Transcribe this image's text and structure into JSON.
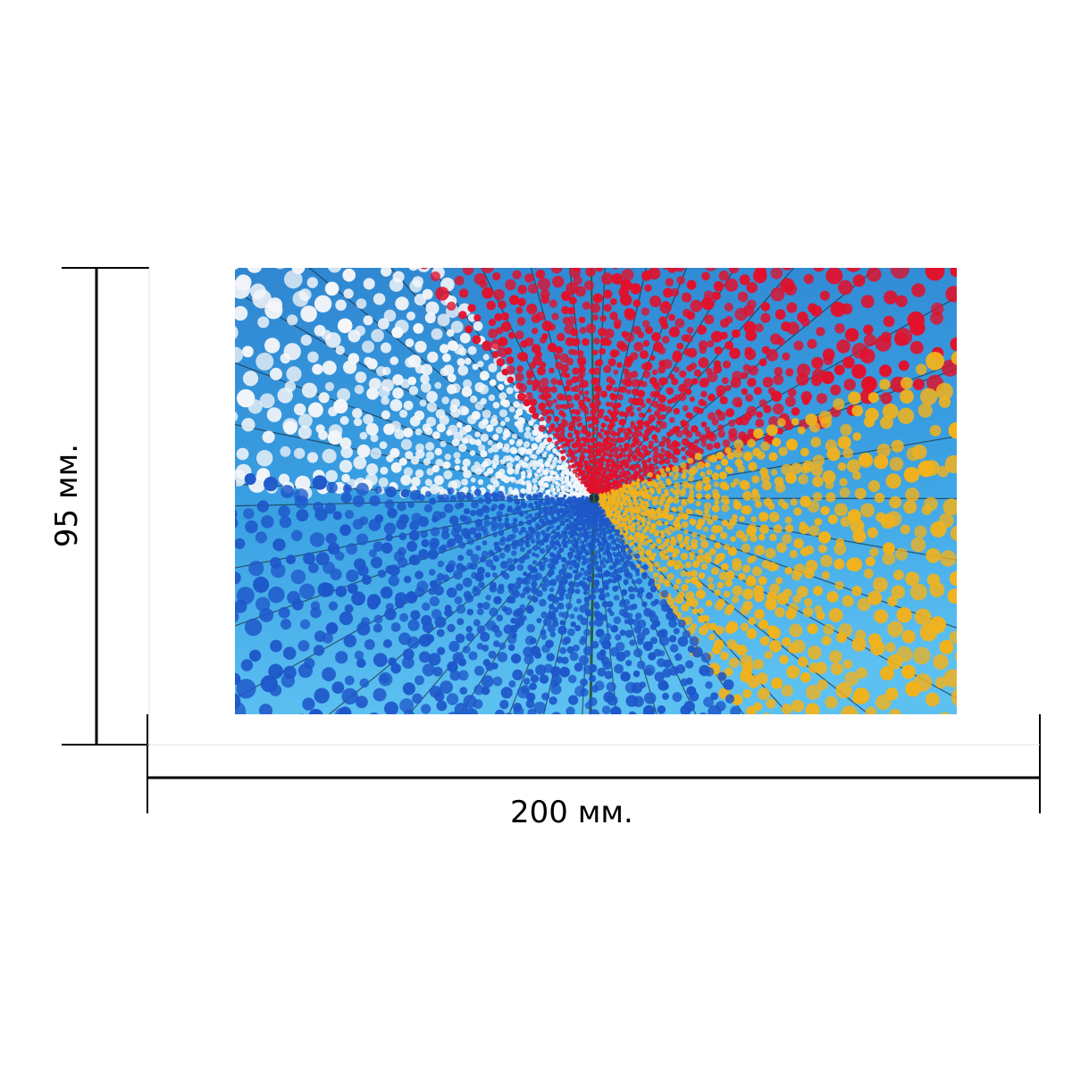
{
  "dimensions": {
    "width_label": "200 мм.",
    "height_label": "95 мм.",
    "line_color": "#000000"
  },
  "photo": {
    "subject": "festival-garland-canopy",
    "garland_colors": {
      "red": "#e3102a",
      "white": "#f4f6f9",
      "blue": "#1e57c9",
      "yellow": "#f2b21b"
    },
    "sky_colors": [
      "#2f86d1",
      "#3aa1e3",
      "#5cc0f1"
    ]
  }
}
